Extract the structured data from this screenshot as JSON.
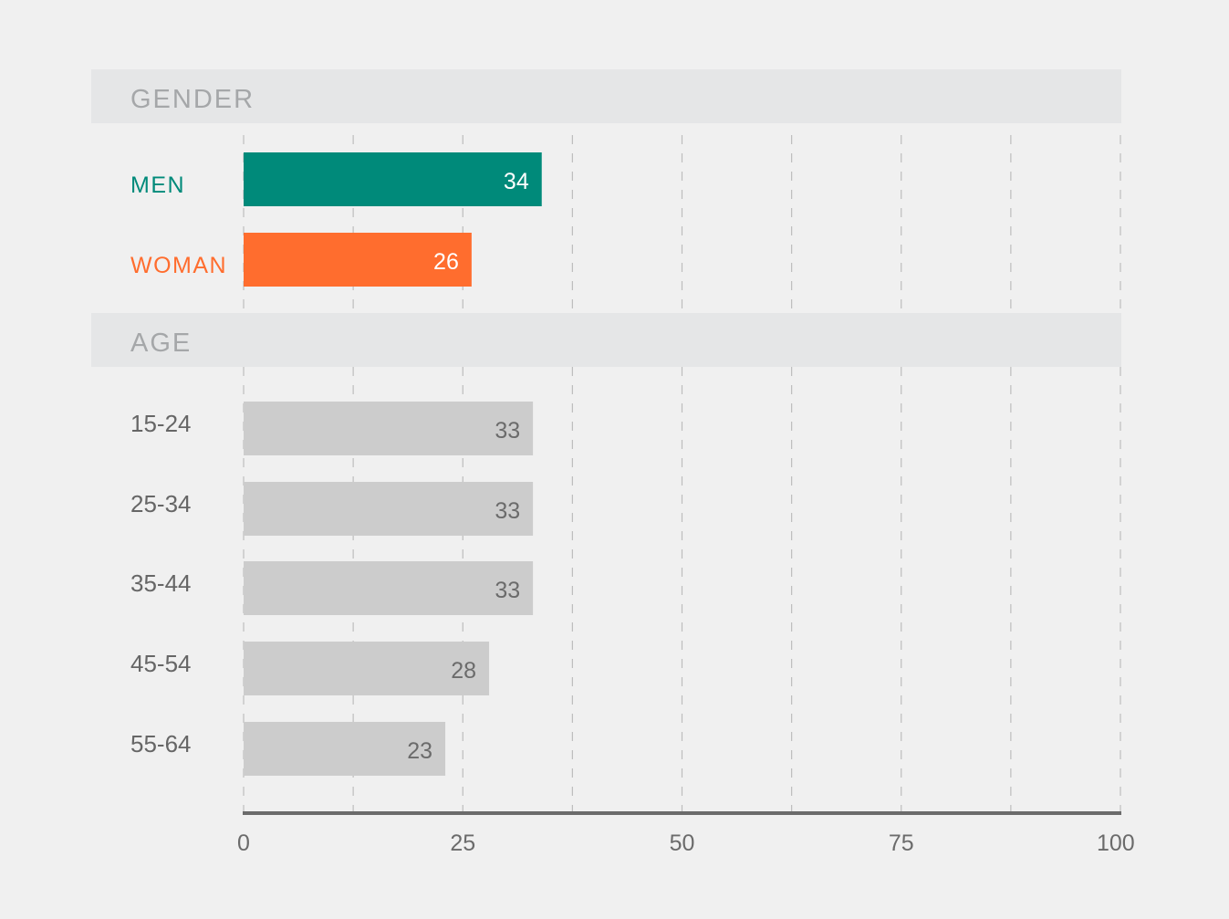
{
  "chart_data": {
    "type": "bar",
    "orientation": "horizontal",
    "xlim": [
      0,
      100
    ],
    "grid": true,
    "x_ticks": [
      "0",
      "25",
      "50",
      "75",
      "100"
    ],
    "groups": [
      {
        "label": "GENDER",
        "rows": [
          {
            "category": "MEN",
            "value": 34,
            "color": "#008a7a"
          },
          {
            "category": "WOMAN",
            "value": 26,
            "color": "#ff6d2e"
          }
        ]
      },
      {
        "label": "AGE",
        "rows": [
          {
            "category": "15-24",
            "value": 33,
            "color": "#cccccc"
          },
          {
            "category": "25-34",
            "value": 33,
            "color": "#cccccc"
          },
          {
            "category": "35-44",
            "value": 33,
            "color": "#cccccc"
          },
          {
            "category": "45-54",
            "value": 28,
            "color": "#cccccc"
          },
          {
            "category": "55-64",
            "value": 23,
            "color": "#cccccc"
          }
        ]
      }
    ]
  },
  "colors": {
    "background": "#f0f0f0",
    "group_band": "#e5e6e7",
    "group_text": "#a5a7a9",
    "age_label_text": "#666666",
    "axis": "#6b6b6b",
    "grid": "#bdbdbd"
  }
}
